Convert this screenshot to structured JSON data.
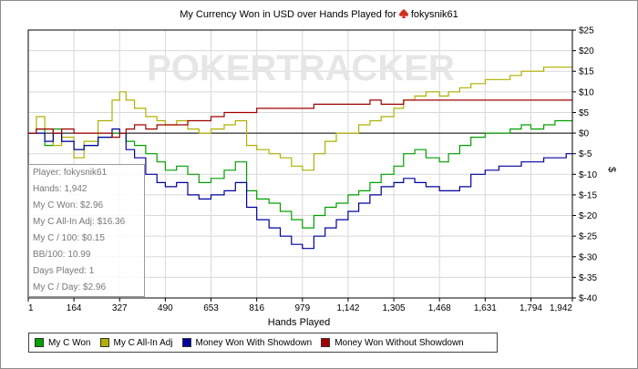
{
  "chart_data": {
    "type": "line",
    "title": "My Currency Won in USD over Hands Played for",
    "player": "fokysnik61",
    "watermark": "POKERTRACKER",
    "xlabel": "Hands Played",
    "ylabel": "$",
    "xlim": [
      1,
      1942
    ],
    "ylim": [
      -40,
      25
    ],
    "x_ticks": [
      1,
      164,
      327,
      490,
      653,
      816,
      979,
      1142,
      1305,
      1468,
      1631,
      1794,
      1942
    ],
    "x_tick_labels": [
      "1",
      "164",
      "327",
      "490",
      "653",
      "816",
      "979",
      "1,142",
      "1,305",
      "1,468",
      "1,631",
      "1,794",
      "1,942"
    ],
    "y_ticks": [
      -40,
      -35,
      -30,
      -25,
      -20,
      -15,
      -10,
      -5,
      0,
      5,
      10,
      15,
      20,
      25
    ],
    "y_tick_labels": [
      "$-40",
      "$-35",
      "$-30",
      "$-25",
      "$-20",
      "$-15",
      "$-10",
      "$-5",
      "$0",
      "$5",
      "$10",
      "$15",
      "$20",
      "$25"
    ],
    "grid": true,
    "legend_position": "bottom",
    "series": [
      {
        "name": "My C Won",
        "color": "#00a000",
        "x": [
          1,
          30,
          60,
          90,
          120,
          164,
          200,
          250,
          300,
          327,
          350,
          380,
          420,
          460,
          490,
          530,
          570,
          610,
          653,
          700,
          740,
          780,
          816,
          860,
          900,
          940,
          979,
          1020,
          1060,
          1100,
          1142,
          1180,
          1220,
          1260,
          1305,
          1340,
          1380,
          1420,
          1468,
          1500,
          1540,
          1580,
          1631,
          1680,
          1720,
          1760,
          1794,
          1840,
          1880,
          1920,
          1942
        ],
        "y": [
          0,
          1,
          -3,
          1,
          -2,
          -4,
          -3,
          -1,
          0,
          0,
          -2,
          -3,
          -5,
          -7,
          -9,
          -8,
          -10,
          -12,
          -11,
          -9,
          -7,
          -14,
          -16,
          -17,
          -19,
          -21,
          -23,
          -20,
          -18,
          -17,
          -15,
          -14,
          -12,
          -10,
          -8,
          -5,
          -4,
          -6,
          -7,
          -5,
          -3,
          -1,
          0,
          0,
          1,
          2,
          1,
          2,
          3,
          3,
          3
        ]
      },
      {
        "name": "My C All-In Adj",
        "color": "#b0b000",
        "x": [
          1,
          30,
          60,
          90,
          120,
          164,
          200,
          250,
          300,
          327,
          350,
          380,
          420,
          460,
          490,
          530,
          570,
          610,
          653,
          700,
          740,
          780,
          816,
          860,
          900,
          940,
          979,
          1020,
          1060,
          1100,
          1142,
          1180,
          1220,
          1260,
          1305,
          1340,
          1380,
          1420,
          1468,
          1500,
          1540,
          1580,
          1631,
          1680,
          1720,
          1760,
          1794,
          1840,
          1880,
          1920,
          1942
        ],
        "y": [
          0,
          4,
          1,
          -3,
          -1,
          -6,
          -2,
          3,
          8,
          10,
          8,
          6,
          4,
          3,
          2,
          3,
          1,
          0,
          1,
          2,
          3,
          -3,
          -4,
          -5,
          -6,
          -8,
          -9,
          -5,
          -2,
          0,
          0,
          2,
          3,
          4,
          6,
          8,
          9,
          10,
          9,
          10,
          11,
          12,
          13,
          13,
          14,
          15,
          15,
          16,
          16,
          16,
          16
        ]
      },
      {
        "name": "Money Won With Showdown",
        "color": "#0000a0",
        "x": [
          1,
          30,
          60,
          90,
          120,
          164,
          200,
          250,
          300,
          327,
          350,
          380,
          420,
          460,
          490,
          530,
          570,
          610,
          653,
          700,
          740,
          780,
          816,
          860,
          900,
          940,
          979,
          1020,
          1060,
          1100,
          1142,
          1180,
          1220,
          1260,
          1305,
          1340,
          1380,
          1420,
          1468,
          1500,
          1540,
          1580,
          1631,
          1680,
          1720,
          1760,
          1794,
          1840,
          1880,
          1920,
          1942
        ],
        "y": [
          0,
          0,
          -2,
          0,
          -2,
          -4,
          -3,
          -1,
          1,
          0,
          -4,
          -6,
          -10,
          -12,
          -13,
          -12,
          -15,
          -16,
          -15,
          -14,
          -12,
          -18,
          -21,
          -23,
          -25,
          -27,
          -28,
          -25,
          -23,
          -21,
          -19,
          -17,
          -15,
          -13,
          -12,
          -11,
          -12,
          -13,
          -14,
          -14,
          -13,
          -10,
          -9,
          -8,
          -8,
          -7,
          -7,
          -6,
          -6,
          -5,
          -5
        ]
      },
      {
        "name": "Money Won Without Showdown",
        "color": "#a00000",
        "x": [
          1,
          30,
          60,
          90,
          120,
          164,
          200,
          250,
          300,
          327,
          350,
          380,
          420,
          460,
          490,
          530,
          570,
          610,
          653,
          700,
          740,
          780,
          816,
          860,
          900,
          940,
          979,
          1020,
          1060,
          1100,
          1142,
          1180,
          1220,
          1260,
          1305,
          1340,
          1380,
          1420,
          1468,
          1500,
          1540,
          1580,
          1631,
          1680,
          1720,
          1760,
          1794,
          1840,
          1880,
          1920,
          1942
        ],
        "y": [
          0,
          1,
          1,
          0,
          1,
          0,
          0,
          0,
          -1,
          0,
          1,
          2,
          1,
          2,
          2,
          2,
          3,
          3,
          4,
          5,
          5,
          5,
          6,
          6,
          6,
          6,
          6,
          7,
          7,
          7,
          7,
          7,
          8,
          7,
          7,
          8,
          8,
          8,
          8,
          8,
          8,
          8,
          8,
          8,
          8,
          8,
          8,
          8,
          8,
          8,
          8
        ]
      }
    ]
  },
  "stats": [
    "Player: fokysnik61",
    "Hands: 1,942",
    "My C Won: $2.96",
    "My C All-In Adj: $16.36",
    "My C / 100: $0.15",
    "BB/100: 10.99",
    "Days Played: 1",
    "My C / Day: $2.96"
  ],
  "colors": {
    "zero_line": "#000000",
    "grid": "#d8d8d8",
    "watermark": "#e6e6e6",
    "suit": "#d03020"
  }
}
